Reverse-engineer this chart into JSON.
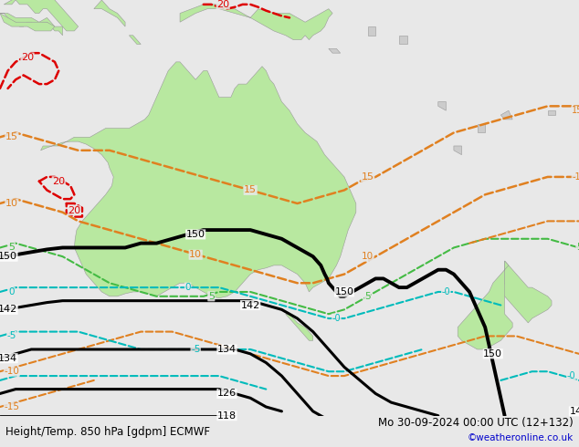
{
  "title_left": "Height/Temp. 850 hPa [gdpm] ECMWF",
  "title_right": "Mo 30-09-2024 00:00 UTC (12+132)",
  "credit": "©weatheronline.co.uk",
  "bg_color": "#e8e8e8",
  "land_color": "#b8e8a0",
  "border_color": "#999999",
  "map_bounds": [
    108,
    182,
    -52,
    -5
  ],
  "fig_w": 6.34,
  "fig_h": 4.9,
  "dpi": 100,
  "orange": "#E08020",
  "red": "#DD0000",
  "cyan": "#00BBBB",
  "green": "#44BB44",
  "black": "#000000",
  "title_color": "#000000",
  "credit_color": "#0000CC"
}
